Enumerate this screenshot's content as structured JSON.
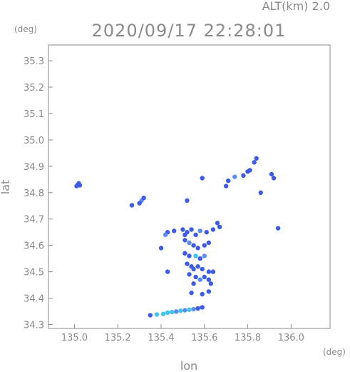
{
  "chart_data": {
    "type": "scatter",
    "title": "2020/09/17 22:28:01",
    "subtitle": "ALT(km) 2.0",
    "xlabel": "lon",
    "ylabel": "lat",
    "x_unit": "(deg)",
    "y_unit": "(deg)",
    "xlim": [
      134.88,
      136.18
    ],
    "ylim": [
      34.285,
      35.36
    ],
    "x_ticks": [
      135.0,
      135.2,
      135.4,
      135.6,
      135.8,
      136.0
    ],
    "x_tick_labels": [
      "135.0",
      "135.2",
      "135.4",
      "135.6",
      "135.8",
      "136.0"
    ],
    "y_ticks": [
      34.3,
      34.4,
      34.5,
      34.6,
      34.7,
      34.8,
      34.9,
      35.0,
      35.1,
      35.2,
      35.3
    ],
    "y_tick_labels": [
      "34.3",
      "34.4",
      "34.5",
      "34.6",
      "34.7",
      "34.8",
      "34.9",
      "35.0",
      "35.1",
      "35.2",
      "35.3"
    ],
    "grid": false,
    "colors": {
      "frame": "#8a8a8a",
      "echo_blue": "#3d5bea",
      "echo_light": "#5a8cf5",
      "echo_cyan": "#3fc4f0"
    },
    "echoes": [
      {
        "lon": 135.015,
        "lat": 34.83,
        "color": "#3d5bea"
      },
      {
        "lon": 135.02,
        "lat": 34.835,
        "color": "#3d5bea"
      },
      {
        "lon": 135.01,
        "lat": 34.825,
        "color": "#3d5bea"
      },
      {
        "lon": 135.025,
        "lat": 34.828,
        "color": "#3d5bea"
      },
      {
        "lon": 135.265,
        "lat": 34.752,
        "color": "#3d5bea"
      },
      {
        "lon": 135.31,
        "lat": 34.77,
        "color": "#5a8cf5"
      },
      {
        "lon": 135.32,
        "lat": 34.78,
        "color": "#3d5bea"
      },
      {
        "lon": 135.3,
        "lat": 34.76,
        "color": "#3d5bea"
      },
      {
        "lon": 135.7,
        "lat": 34.825,
        "color": "#3d5bea"
      },
      {
        "lon": 135.71,
        "lat": 34.845,
        "color": "#3d5bea"
      },
      {
        "lon": 135.74,
        "lat": 34.86,
        "color": "#5a8cf5"
      },
      {
        "lon": 135.78,
        "lat": 34.865,
        "color": "#3d5bea"
      },
      {
        "lon": 135.8,
        "lat": 34.88,
        "color": "#3d5bea"
      },
      {
        "lon": 135.81,
        "lat": 34.885,
        "color": "#3d5bea"
      },
      {
        "lon": 135.83,
        "lat": 34.915,
        "color": "#3d5bea"
      },
      {
        "lon": 135.84,
        "lat": 34.93,
        "color": "#3d5bea"
      },
      {
        "lon": 135.86,
        "lat": 34.8,
        "color": "#3d5bea"
      },
      {
        "lon": 135.91,
        "lat": 34.87,
        "color": "#3d5bea"
      },
      {
        "lon": 135.92,
        "lat": 34.855,
        "color": "#3d5bea"
      },
      {
        "lon": 135.94,
        "lat": 34.665,
        "color": "#3d5bea"
      },
      {
        "lon": 135.59,
        "lat": 34.855,
        "color": "#3d5bea"
      },
      {
        "lon": 135.52,
        "lat": 34.77,
        "color": "#3d5bea"
      },
      {
        "lon": 135.43,
        "lat": 34.65,
        "color": "#3d5bea"
      },
      {
        "lon": 135.46,
        "lat": 34.655,
        "color": "#3d5bea"
      },
      {
        "lon": 135.42,
        "lat": 34.64,
        "color": "#5a8cf5"
      },
      {
        "lon": 135.4,
        "lat": 34.59,
        "color": "#3d5bea"
      },
      {
        "lon": 135.5,
        "lat": 34.66,
        "color": "#3d5bea"
      },
      {
        "lon": 135.52,
        "lat": 34.65,
        "color": "#3d5bea"
      },
      {
        "lon": 135.54,
        "lat": 34.66,
        "color": "#3d5bea"
      },
      {
        "lon": 135.56,
        "lat": 34.64,
        "color": "#3d5bea"
      },
      {
        "lon": 135.58,
        "lat": 34.655,
        "color": "#5a8cf5"
      },
      {
        "lon": 135.61,
        "lat": 34.65,
        "color": "#3d5bea"
      },
      {
        "lon": 135.64,
        "lat": 34.66,
        "color": "#3d5bea"
      },
      {
        "lon": 135.66,
        "lat": 34.685,
        "color": "#3d5bea"
      },
      {
        "lon": 135.67,
        "lat": 34.67,
        "color": "#3d5bea"
      },
      {
        "lon": 135.51,
        "lat": 34.62,
        "color": "#3d5bea"
      },
      {
        "lon": 135.53,
        "lat": 34.61,
        "color": "#5a8cf5"
      },
      {
        "lon": 135.55,
        "lat": 34.6,
        "color": "#3d5bea"
      },
      {
        "lon": 135.57,
        "lat": 34.59,
        "color": "#3d5bea"
      },
      {
        "lon": 135.6,
        "lat": 34.6,
        "color": "#3d5bea"
      },
      {
        "lon": 135.62,
        "lat": 34.61,
        "color": "#3d5bea"
      },
      {
        "lon": 135.51,
        "lat": 34.57,
        "color": "#3d5bea"
      },
      {
        "lon": 135.53,
        "lat": 34.56,
        "color": "#3d5bea"
      },
      {
        "lon": 135.56,
        "lat": 34.56,
        "color": "#3fc4f0"
      },
      {
        "lon": 135.58,
        "lat": 34.55,
        "color": "#3d5bea"
      },
      {
        "lon": 135.6,
        "lat": 34.56,
        "color": "#5a8cf5"
      },
      {
        "lon": 135.52,
        "lat": 34.53,
        "color": "#3d5bea"
      },
      {
        "lon": 135.54,
        "lat": 34.52,
        "color": "#3d5bea"
      },
      {
        "lon": 135.55,
        "lat": 34.51,
        "color": "#3d5bea"
      },
      {
        "lon": 135.57,
        "lat": 34.52,
        "color": "#3d5bea"
      },
      {
        "lon": 135.59,
        "lat": 34.51,
        "color": "#3d5bea"
      },
      {
        "lon": 135.62,
        "lat": 34.5,
        "color": "#3d5bea"
      },
      {
        "lon": 135.64,
        "lat": 34.5,
        "color": "#3d5bea"
      },
      {
        "lon": 135.53,
        "lat": 34.49,
        "color": "#3d5bea"
      },
      {
        "lon": 135.56,
        "lat": 34.48,
        "color": "#3d5bea"
      },
      {
        "lon": 135.58,
        "lat": 34.47,
        "color": "#5a8cf5"
      },
      {
        "lon": 135.6,
        "lat": 34.48,
        "color": "#3d5bea"
      },
      {
        "lon": 135.62,
        "lat": 34.47,
        "color": "#3d5bea"
      },
      {
        "lon": 135.63,
        "lat": 34.455,
        "color": "#3d5bea"
      },
      {
        "lon": 135.55,
        "lat": 34.455,
        "color": "#3d5bea"
      },
      {
        "lon": 135.54,
        "lat": 34.42,
        "color": "#3d5bea"
      },
      {
        "lon": 135.59,
        "lat": 34.415,
        "color": "#3d5bea"
      },
      {
        "lon": 135.62,
        "lat": 34.425,
        "color": "#3d5bea"
      },
      {
        "lon": 135.43,
        "lat": 34.5,
        "color": "#3d5bea"
      },
      {
        "lon": 135.51,
        "lat": 34.64,
        "color": "#3d5bea"
      },
      {
        "lon": 135.35,
        "lat": 34.335,
        "color": "#3d5bea"
      },
      {
        "lon": 135.38,
        "lat": 34.338,
        "color": "#3fc4f0"
      },
      {
        "lon": 135.41,
        "lat": 34.34,
        "color": "#3fc4f0"
      },
      {
        "lon": 135.43,
        "lat": 34.345,
        "color": "#3fc4f0"
      },
      {
        "lon": 135.45,
        "lat": 34.347,
        "color": "#3fc4f0"
      },
      {
        "lon": 135.47,
        "lat": 34.349,
        "color": "#5a8cf5"
      },
      {
        "lon": 135.49,
        "lat": 34.352,
        "color": "#3fc4f0"
      },
      {
        "lon": 135.51,
        "lat": 34.354,
        "color": "#5a8cf5"
      },
      {
        "lon": 135.53,
        "lat": 34.356,
        "color": "#3fc4f0"
      },
      {
        "lon": 135.55,
        "lat": 34.358,
        "color": "#5a8cf5"
      },
      {
        "lon": 135.57,
        "lat": 34.361,
        "color": "#3d5bea"
      },
      {
        "lon": 135.59,
        "lat": 34.365,
        "color": "#3d5bea"
      }
    ]
  }
}
